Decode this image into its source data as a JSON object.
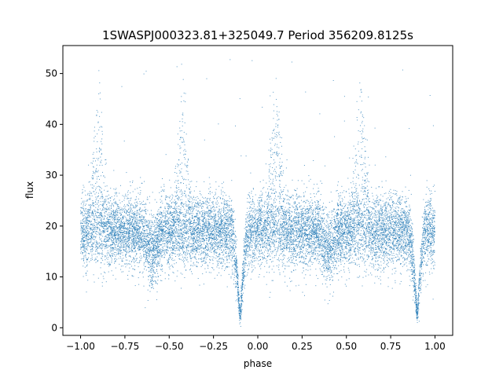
{
  "chart_data": {
    "type": "scatter",
    "title": "1SWASPJ000323.81+325049.7 Period 356209.8125s",
    "xlabel": "phase",
    "ylabel": "flux",
    "xlim": [
      -1.1,
      1.1
    ],
    "ylim": [
      -1.5,
      55.5
    ],
    "x_ticks": [
      -1.0,
      -0.75,
      -0.5,
      -0.25,
      0.0,
      0.25,
      0.5,
      0.75,
      1.0
    ],
    "x_tick_labels": [
      "−1.00",
      "−0.75",
      "−0.50",
      "−0.25",
      "0.00",
      "0.25",
      "0.50",
      "0.75",
      "1.00"
    ],
    "y_ticks": [
      0,
      10,
      20,
      30,
      40,
      50
    ],
    "y_tick_labels": [
      "0",
      "10",
      "20",
      "30",
      "40",
      "50"
    ],
    "grid": false,
    "point_color": "#1f77b4",
    "series": [
      {
        "phase_range": [
          -1.0,
          1.0
        ],
        "baseline_flux": 19,
        "flux_scatter": 3.5,
        "primary_eclipse": {
          "phase": [
            -0.1,
            0.9
          ],
          "min_flux": 2,
          "half_width": 0.05
        },
        "maxima_spikes": {
          "phase": [
            -0.9,
            -0.42,
            0.1,
            0.58
          ],
          "max_flux": 49
        },
        "n_points": 14000
      }
    ]
  }
}
